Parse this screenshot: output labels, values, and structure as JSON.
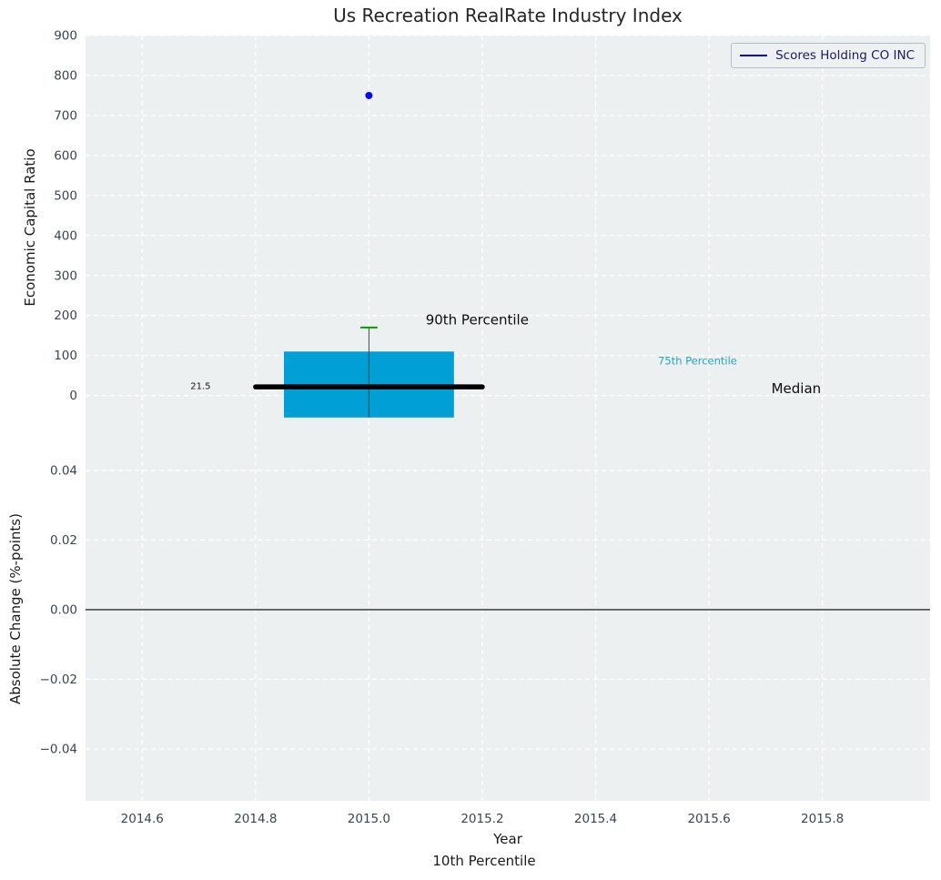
{
  "chart_data": {
    "type": "boxplot",
    "title": "Us Recreation RealRate Industry Index",
    "xlabel": "Year",
    "xlabel_secondary": "10th Percentile",
    "xlim": [
      2014.5,
      2015.99
    ],
    "xticks": [
      2014.6,
      2014.8,
      2015.0,
      2015.2,
      2015.4,
      2015.6,
      2015.8
    ],
    "legend": {
      "label": "Scores Holding CO INC",
      "line_color": "#0000a8",
      "text_color": "#1b1b5e"
    },
    "colors": {
      "panel_bg": "#edf0f1",
      "grid": "#ffffff",
      "tick_label": "#3b4450",
      "title": "#262626",
      "axis_label": "#1a1a1a",
      "zero_line": "#000000"
    },
    "top_panel": {
      "ylabel": "Economic Capital Ratio",
      "ylim": [
        -60,
        900
      ],
      "yticks": [
        0,
        100,
        200,
        300,
        400,
        500,
        600,
        700,
        800,
        900
      ],
      "box": {
        "x_center": 2015.0,
        "box_left": 2014.85,
        "box_right": 2015.15,
        "box_low": -55,
        "box_high": 110,
        "median": 21.5,
        "median_left": 2014.8,
        "median_right": 2015.2,
        "p90": 170,
        "cap_left": 2014.985,
        "cap_right": 2015.015,
        "box_color": "#009fd6",
        "median_color": "#000000",
        "cap_color": "#009e00",
        "whisker_color": "#3a4a52"
      },
      "company_point": {
        "x": 2015.0,
        "y": 750,
        "color": "#0b0bea",
        "radius": 4
      },
      "annotations": [
        {
          "text": "90th Percentile",
          "x": 2015.1,
          "y": 178,
          "color": "#0d0d0d",
          "size": 15
        },
        {
          "text": "75th Percentile",
          "x": 2015.51,
          "y": 78,
          "color": "#21a5c4",
          "size": 11.5
        },
        {
          "text": "Median",
          "x": 2015.71,
          "y": 6,
          "color": "#0d0d0d",
          "size": 15
        },
        {
          "text": "21.5",
          "x": 2014.685,
          "y": 16,
          "color": "#141414",
          "size": 10
        }
      ]
    },
    "bottom_panel": {
      "ylabel": "Absolute Change (%-points)",
      "ylim": [
        -0.0549,
        0.0546
      ],
      "yticks": [
        0.04,
        0.02,
        0,
        -0.02,
        -0.04
      ],
      "ytick_labels": [
        "0.04",
        "0.02",
        "0.00",
        "−0.02",
        "−0.04"
      ],
      "zero_line": 0
    }
  }
}
